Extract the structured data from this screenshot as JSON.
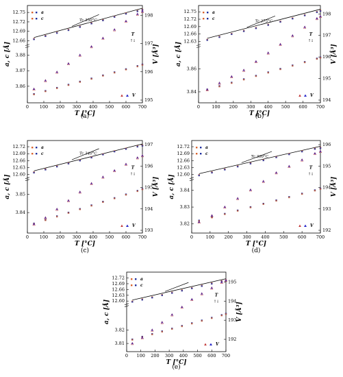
{
  "figure": {
    "label_up": "↑",
    "label_down": "↓",
    "T_marker": "T"
  },
  "chart_data": [
    {
      "type": "scatter",
      "caption": "(a)",
      "xlabel": "T [°C]",
      "ylabel_left": "a, c [Å]",
      "ylabel_right": "V [Å³]",
      "xlim": [
        0,
        700
      ],
      "xticks": [
        "0",
        "100",
        "200",
        "300",
        "400",
        "500",
        "600",
        "700"
      ],
      "left_top_ticks": [
        "12.66",
        "12.69",
        "12.72",
        "12.75"
      ],
      "left_bottom_ticks": [
        "3.86",
        "3.87",
        "3.88"
      ],
      "right_ticks": [
        "195",
        "196",
        "197",
        "198"
      ],
      "ylim_right": [
        195,
        198.2
      ],
      "tc_label": "Tc 350°C",
      "legend": [
        "a",
        "c",
        "V"
      ],
      "x": [
        40,
        110,
        180,
        250,
        320,
        390,
        460,
        530,
        600,
        670,
        700
      ],
      "series": [
        {
          "name": "c",
          "values": [
            12.666,
            12.676,
            12.686,
            12.695,
            12.705,
            12.716,
            12.726,
            12.737,
            12.747,
            12.755,
            12.759
          ]
        },
        {
          "name": "a",
          "values": [
            3.855,
            3.857,
            3.859,
            3.861,
            3.863,
            3.865,
            3.867,
            3.869,
            3.871,
            3.873,
            3.874
          ]
        },
        {
          "name": "V",
          "values": [
            195.4,
            195.7,
            196.0,
            196.3,
            196.6,
            196.9,
            197.2,
            197.5,
            197.8,
            198.05,
            198.15
          ]
        }
      ]
    },
    {
      "type": "scatter",
      "caption": "(b)",
      "xlabel": "T [°C]",
      "ylabel_left": "a, c [Å]",
      "ylabel_right": "V [Å³]",
      "xlim": [
        0,
        700
      ],
      "xticks": [
        "0",
        "100",
        "200",
        "300",
        "400",
        "500",
        "600",
        "700"
      ],
      "left_top_ticks": [
        "12.63",
        "12.66",
        "12.69",
        "12.72",
        "12.75"
      ],
      "left_bottom_ticks": [
        "3.84",
        "3.86"
      ],
      "right_ticks": [
        "194",
        "195",
        "196",
        "197",
        "198"
      ],
      "ylim_right": [
        194,
        198.2
      ],
      "tc_label": "Tc 375°C",
      "legend": [
        "a",
        "c",
        "V"
      ],
      "x": [
        50,
        120,
        190,
        260,
        330,
        400,
        470,
        540,
        610,
        680,
        700
      ],
      "series": [
        {
          "name": "c",
          "values": [
            12.637,
            12.649,
            12.661,
            12.673,
            12.685,
            12.698,
            12.711,
            12.724,
            12.737,
            12.75,
            12.755
          ]
        },
        {
          "name": "a",
          "values": [
            3.842,
            3.845,
            3.848,
            3.851,
            3.854,
            3.857,
            3.86,
            3.863,
            3.866,
            3.869,
            3.87
          ]
        },
        {
          "name": "V",
          "values": [
            194.5,
            194.8,
            195.1,
            195.4,
            195.8,
            196.2,
            196.6,
            197.0,
            197.4,
            197.8,
            197.9
          ]
        }
      ]
    },
    {
      "type": "scatter",
      "caption": "(c)",
      "xlabel": "T [°C]",
      "ylabel_left": "a, c [Å]",
      "ylabel_right": "V [Å³]",
      "xlim": [
        0,
        700
      ],
      "xticks": [
        "0",
        "100",
        "200",
        "300",
        "400",
        "500",
        "600",
        "700"
      ],
      "left_top_ticks": [
        "12.60",
        "12.63",
        "12.66",
        "12.69",
        "12.72"
      ],
      "left_bottom_ticks": [
        "3.84",
        "3.85"
      ],
      "right_ticks": [
        "193",
        "194",
        "195",
        "196",
        "197"
      ],
      "ylim_right": [
        193,
        197
      ],
      "tc_label": "Tc 340°C",
      "legend": [
        "a",
        "c",
        "V"
      ],
      "x": [
        40,
        110,
        180,
        250,
        320,
        390,
        460,
        530,
        600,
        670,
        700
      ],
      "series": [
        {
          "name": "c",
          "values": [
            12.61,
            12.623,
            12.636,
            12.649,
            12.662,
            12.675,
            12.688,
            12.701,
            12.712,
            12.722,
            12.726
          ]
        },
        {
          "name": "a",
          "values": [
            3.834,
            3.836,
            3.838,
            3.84,
            3.842,
            3.844,
            3.846,
            3.848,
            3.85,
            3.852,
            3.853
          ]
        },
        {
          "name": "V",
          "values": [
            193.3,
            193.6,
            194.0,
            194.4,
            194.8,
            195.2,
            195.5,
            195.8,
            196.1,
            196.4,
            196.5
          ]
        }
      ]
    },
    {
      "type": "scatter",
      "caption": "(d)",
      "xlabel": "T [°C]",
      "ylabel_left": "a, c [Å]",
      "ylabel_right": "V [Å³]",
      "xlim": [
        0,
        700
      ],
      "xticks": [
        "0",
        "100",
        "200",
        "300",
        "400",
        "500",
        "600",
        "700"
      ],
      "left_top_ticks": [
        "12.60",
        "12.63",
        "12.66",
        "12.69",
        "12.72"
      ],
      "left_bottom_ticks": [
        "3.82",
        "3.83",
        "3.84"
      ],
      "right_ticks": [
        "192",
        "193",
        "194",
        "195",
        "196"
      ],
      "ylim_right": [
        192,
        196
      ],
      "tc_label": "Tc 360°C",
      "legend": [
        "a",
        "c",
        "V"
      ],
      "x": [
        40,
        110,
        180,
        250,
        320,
        390,
        460,
        530,
        600,
        670,
        700
      ],
      "series": [
        {
          "name": "c",
          "values": [
            12.598,
            12.61,
            12.623,
            12.636,
            12.649,
            12.663,
            12.676,
            12.689,
            12.701,
            12.712,
            12.716
          ]
        },
        {
          "name": "a",
          "values": [
            3.822,
            3.824,
            3.826,
            3.828,
            3.83,
            3.832,
            3.834,
            3.836,
            3.838,
            3.84,
            3.841
          ]
        },
        {
          "name": "V",
          "values": [
            192.4,
            192.7,
            193.1,
            193.5,
            193.9,
            194.3,
            194.7,
            195.0,
            195.3,
            195.6,
            195.7
          ]
        }
      ]
    },
    {
      "type": "scatter",
      "caption": "(e)",
      "xlabel": "T [°C]",
      "ylabel_left": "a, c [Å]",
      "ylabel_right": "V [Å³]",
      "xlim": [
        0,
        700
      ],
      "xticks": [
        "0",
        "100",
        "200",
        "300",
        "400",
        "500",
        "600",
        "700"
      ],
      "left_top_ticks": [
        "12.60",
        "12.63",
        "12.66",
        "12.69",
        "12.72"
      ],
      "left_bottom_ticks": [
        "3.81",
        "3.82"
      ],
      "right_ticks": [
        "192",
        "193",
        "194",
        "195"
      ],
      "ylim_right": [
        191.5,
        195.3
      ],
      "tc_label": "",
      "legend": [
        "a",
        "c",
        "V"
      ],
      "x": [
        40,
        110,
        180,
        250,
        320,
        390,
        460,
        530,
        600,
        670,
        700
      ],
      "series": [
        {
          "name": "c",
          "values": [
            12.598,
            12.609,
            12.62,
            12.632,
            12.644,
            12.656,
            12.668,
            12.68,
            12.692,
            12.704,
            12.709
          ]
        },
        {
          "name": "a",
          "values": [
            3.813,
            3.815,
            3.817,
            3.819,
            3.821,
            3.823,
            3.825,
            3.827,
            3.829,
            3.831,
            3.832
          ]
        },
        {
          "name": "V",
          "values": [
            191.8,
            192.1,
            192.5,
            192.9,
            193.3,
            193.7,
            194.1,
            194.4,
            194.7,
            195.0,
            195.1
          ]
        }
      ]
    }
  ]
}
